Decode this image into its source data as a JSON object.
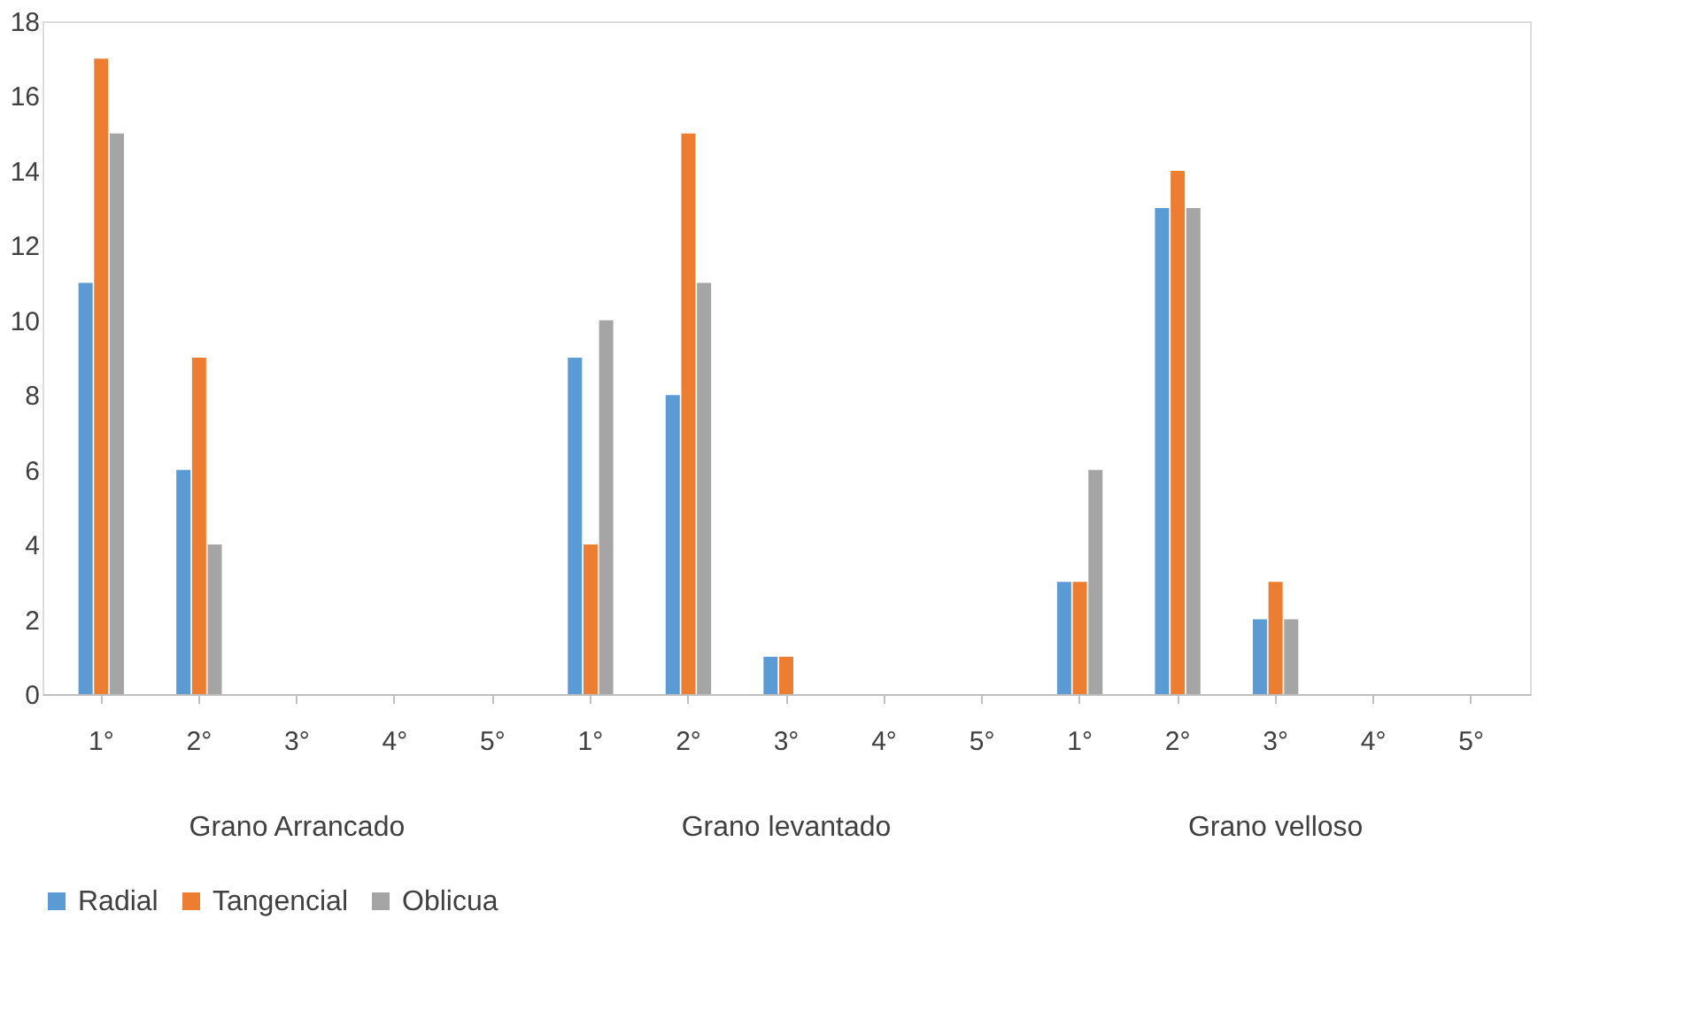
{
  "chart_data": {
    "type": "bar",
    "categories": [
      "1°",
      "2°",
      "3°",
      "4°",
      "5°",
      "1°",
      "2°",
      "3°",
      "4°",
      "5°",
      "1°",
      "2°",
      "3°",
      "4°",
      "5°"
    ],
    "series": [
      {
        "name": "Radial",
        "color": "#5b9bd5",
        "values": [
          11,
          6,
          0,
          0,
          0,
          9,
          8,
          1,
          0,
          0,
          3,
          13,
          2,
          0,
          0
        ]
      },
      {
        "name": "Tangencial",
        "color": "#ed7d31",
        "values": [
          17,
          9,
          0,
          0,
          0,
          4,
          15,
          1,
          0,
          0,
          3,
          14,
          3,
          0,
          0
        ]
      },
      {
        "name": "Oblicua",
        "color": "#a5a5a5",
        "values": [
          15,
          4,
          0,
          0,
          0,
          10,
          11,
          0,
          0,
          0,
          6,
          13,
          2,
          0,
          0
        ]
      }
    ],
    "annotations": [
      "Grano Arrancado",
      "Grano levantado",
      "Grano velloso"
    ],
    "ylim": [
      0,
      18
    ],
    "yticks": [
      0,
      2,
      4,
      6,
      8,
      10,
      12,
      14,
      16,
      18
    ],
    "grid": false,
    "legend": "bottom"
  }
}
